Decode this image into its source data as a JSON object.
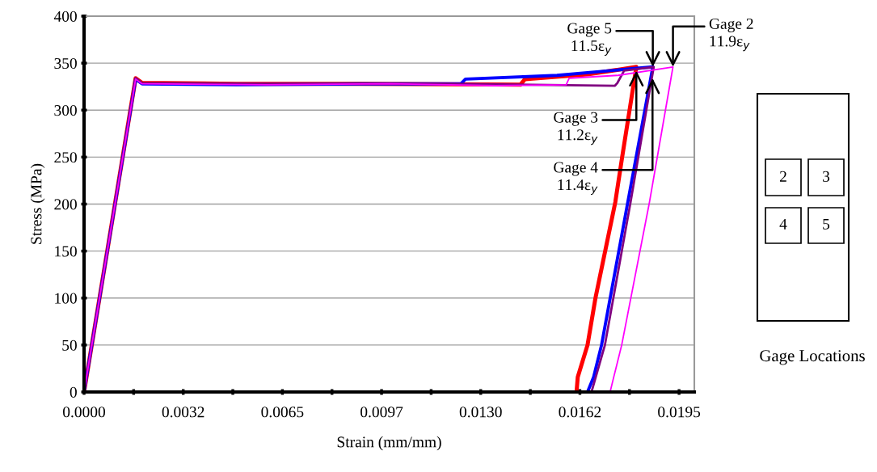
{
  "chart_data": {
    "type": "line",
    "xlabel": "Strain (mm/mm)",
    "ylabel": "Stress (MPa)",
    "xlim": [
      0,
      0.02
    ],
    "ylim": [
      0,
      400
    ],
    "xticks": [
      {
        "value": 0,
        "label": "0.0000"
      },
      {
        "value": 0.001625,
        "label": null
      },
      {
        "value": 0.00325,
        "label": "0.0032"
      },
      {
        "value": 0.004875,
        "label": null
      },
      {
        "value": 0.0065,
        "label": "0.0065"
      },
      {
        "value": 0.008125,
        "label": null
      },
      {
        "value": 0.00975,
        "label": "0.0097"
      },
      {
        "value": 0.011375,
        "label": null
      },
      {
        "value": 0.013,
        "label": "0.0130"
      },
      {
        "value": 0.014625,
        "label": null
      },
      {
        "value": 0.01625,
        "label": "0.0162"
      },
      {
        "value": 0.017875,
        "label": null
      },
      {
        "value": 0.0195,
        "label": "0.0195"
      }
    ],
    "yticks": [
      0,
      50,
      100,
      150,
      200,
      250,
      300,
      350,
      400
    ],
    "grid": "y",
    "marker": "none",
    "line_style": "solid",
    "legend": false,
    "series": [
      {
        "color": "#ff0000",
        "x": [
          0,
          0.00169,
          0.0019,
          0.005,
          0.009,
          0.0143,
          0.01445,
          0.0165,
          0.0181,
          0.01763,
          0.01741,
          0.01676,
          0.0165,
          0.01618,
          0.01614
        ],
        "values": [
          0,
          334,
          329,
          328,
          328,
          327,
          333,
          338,
          346,
          249,
          202,
          100,
          50,
          16,
          0
        ]
      },
      {
        "color": "#0000ff",
        "x": [
          0,
          0.00169,
          0.0019,
          0.005,
          0.009,
          0.01235,
          0.0125,
          0.0155,
          0.01864,
          0.01782,
          0.01696,
          0.0167,
          0.0165
        ],
        "values": [
          0,
          333,
          328,
          327,
          328,
          328,
          333,
          337,
          346,
          202,
          50,
          16,
          0
        ]
      },
      {
        "color": "#800080",
        "x": [
          0,
          0.00169,
          0.0019,
          0.006,
          0.012,
          0.0174,
          0.01748,
          0.0177,
          0.01867,
          0.01791,
          0.01707,
          0.01663
        ],
        "values": [
          0,
          334,
          329,
          328,
          328,
          326,
          329,
          342,
          346,
          202,
          50,
          0
        ]
      },
      {
        "color": "#ff00ff",
        "x": [
          0,
          0.00169,
          0.0019,
          0.006,
          0.01,
          0.0135,
          0.0158,
          0.0159,
          0.0175,
          0.0193,
          0.01853,
          0.01762,
          0.01736,
          0.01724
        ],
        "values": [
          0,
          333,
          328,
          327,
          328,
          326,
          327,
          334,
          337,
          346,
          202,
          50,
          16,
          0
        ]
      }
    ],
    "annotations": [
      {
        "text": "Gage 5\n11.5ε$_{y}$",
        "x": 0.01864,
        "y": 346
      },
      {
        "text": "Gage 2\n11.9ε$_{y}$",
        "x": 0.0193,
        "y": 346
      },
      {
        "text": "Gage 3\n11.2ε$_{y}$",
        "x": 0.0181,
        "y": 342
      },
      {
        "text": "Gage 4\n11.4ε$_{y}$",
        "x": 0.01863,
        "y": 334
      },
      "2",
      "3",
      "4",
      "5",
      "Gage Locations"
    ]
  }
}
